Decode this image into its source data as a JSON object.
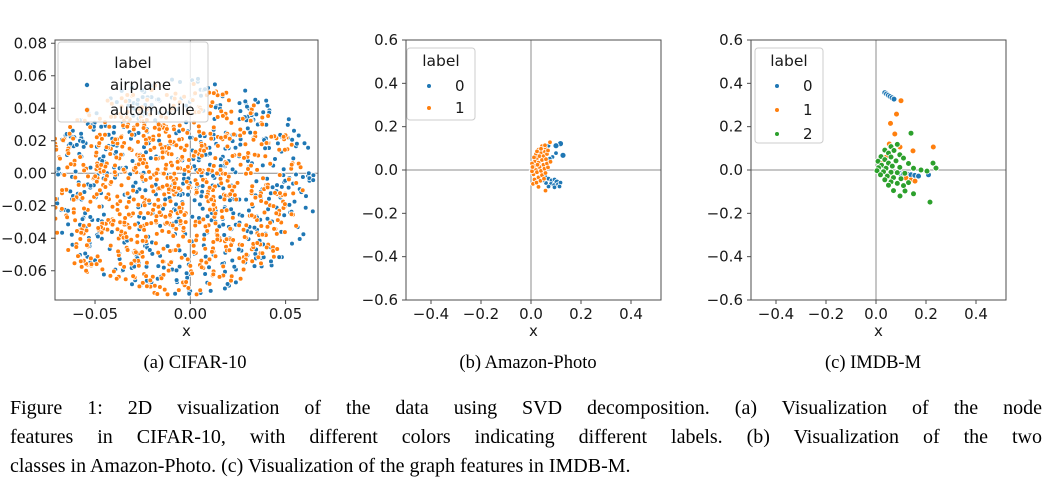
{
  "figure_caption": {
    "lines": [
      "Figure 1: 2D visualization of the data using SVD decomposition. (a) Visualization of the node",
      "features in CIFAR-10, with different colors indicating different labels. (b) Visualization of the two",
      "classes in Amazon-Photo. (c) Visualization of the graph features in IMDB-M."
    ],
    "full_text": "Figure 1: 2D visualization of the data using SVD decomposition. (a) Visualization of the node features in CIFAR-10, with different colors indicating different labels. (b) Visualization of the two classes in Amazon-Photo. (c) Visualization of the graph features in IMDB-M."
  },
  "colors": {
    "blue": "#1f77b4",
    "orange": "#ff7f0e",
    "green": "#2ca02c",
    "crosshair_gray": "#8c8c8c",
    "axes_gray": "#4d4d4d",
    "legend_fill": "rgba(255,255,255,0.8)",
    "legend_border": "#cccccc"
  },
  "chart_data": [
    {
      "type": "scatter",
      "panel": "a",
      "subcaption": "(a) CIFAR-10",
      "xlabel": "x",
      "xlim": [
        -0.071,
        0.067
      ],
      "ylim": [
        -0.078,
        0.082
      ],
      "x_ticks": [
        -0.05,
        0,
        0.05
      ],
      "x_tick_labels": [
        "−0.05",
        "0.00",
        "0.05"
      ],
      "y_ticks": [
        0.08,
        0.06,
        0.04,
        0.02,
        0,
        -0.02,
        -0.04,
        -0.06
      ],
      "y_tick_labels": [
        "0.08",
        "0.06",
        "0.04",
        "0.02",
        "0.00",
        "−0.02",
        "−0.04",
        "−0.06"
      ],
      "grid": false,
      "crosshair": true,
      "legend": {
        "title": "label",
        "position": "upper-left",
        "items": [
          "airplane",
          "automobile"
        ]
      },
      "series": [
        {
          "name": "airplane",
          "color": "#1f77b4",
          "marker_radius": 2.4,
          "generated_cluster": {
            "note": "dense ~1400-point circular cloud; individual points not resolvable, reproduced procedurally",
            "seed": 11,
            "count": 600,
            "center": [
              -0.004,
              -0.008
            ],
            "radius": [
              0.071,
              0.067
            ],
            "density_exp": 0.5
          }
        },
        {
          "name": "automobile",
          "color": "#ff7f0e",
          "marker_radius": 2.4,
          "generated_cluster": {
            "seed": 29,
            "count": 820,
            "center": [
              -0.01,
              -0.01
            ],
            "radius": [
              0.07,
              0.066
            ],
            "density_exp": 0.66
          }
        }
      ]
    },
    {
      "type": "scatter",
      "panel": "b",
      "subcaption": "(b) Amazon-Photo",
      "xlabel": "x",
      "xlim": [
        -0.5,
        0.52
      ],
      "ylim": [
        -0.6,
        0.6
      ],
      "x_ticks": [
        -0.4,
        -0.2,
        0,
        0.2,
        0.4
      ],
      "x_tick_labels": [
        "−0.4",
        "−0.2",
        "0.0",
        "0.2",
        "0.4"
      ],
      "y_ticks": [
        0.6,
        0.4,
        0.2,
        0,
        -0.2,
        -0.4,
        -0.6
      ],
      "y_tick_labels": [
        "0.6",
        "0.4",
        "0.2",
        "0.0",
        "−0.2",
        "−0.4",
        "−0.6"
      ],
      "grid": false,
      "crosshair": true,
      "legend": {
        "title": "label",
        "position": "upper-left",
        "items": [
          "0",
          "1"
        ]
      },
      "series": [
        {
          "name": "0",
          "color": "#1f77b4",
          "marker_radius": 2.3,
          "points": [
            [
              0.118,
              0.122,
              3
            ],
            [
              0.1,
              0.112,
              3
            ],
            [
              0.128,
              0.068,
              3
            ],
            [
              0.1,
              0.078
            ],
            [
              0.086,
              0.06
            ],
            [
              0.075,
              0.052
            ],
            [
              0.062,
              0.098
            ],
            [
              0.07,
              0.112
            ],
            [
              0.052,
              0.105
            ],
            [
              0.002,
              -0.002
            ],
            [
              0.058,
              -0.032
            ],
            [
              0.07,
              -0.04
            ],
            [
              0.082,
              -0.048
            ],
            [
              0.094,
              -0.044
            ],
            [
              0.104,
              -0.056,
              3
            ],
            [
              0.08,
              -0.064
            ],
            [
              0.092,
              -0.07
            ],
            [
              0.108,
              -0.066
            ],
            [
              0.118,
              -0.058
            ],
            [
              0.07,
              -0.076
            ],
            [
              0.094,
              -0.08
            ],
            [
              0.114,
              -0.076
            ],
            [
              0.06,
              -0.06
            ],
            [
              0.048,
              -0.048
            ]
          ]
        },
        {
          "name": "1",
          "color": "#ff7f0e",
          "marker_radius": 2.3,
          "points": [
            [
              0.01,
              0.004
            ],
            [
              0.016,
              0.04
            ],
            [
              0.02,
              0.074
            ],
            [
              0.03,
              0.094
            ],
            [
              0.044,
              0.11
            ],
            [
              0.058,
              0.1
            ],
            [
              0.076,
              0.128
            ],
            [
              0.025,
              0.056
            ],
            [
              0.04,
              0.08
            ],
            [
              0.056,
              0.084
            ],
            [
              0.034,
              0.064
            ],
            [
              0.05,
              0.064
            ],
            [
              0.064,
              0.074
            ],
            [
              0.014,
              0.02
            ],
            [
              0.03,
              0.034
            ],
            [
              0.044,
              0.046
            ],
            [
              0.06,
              0.05
            ],
            [
              0.02,
              0.0
            ],
            [
              0.034,
              0.014
            ],
            [
              0.05,
              0.024
            ],
            [
              0.064,
              0.03
            ],
            [
              0.078,
              0.038
            ],
            [
              0.01,
              -0.02
            ],
            [
              0.024,
              -0.01
            ],
            [
              0.04,
              -0.004
            ],
            [
              0.054,
              0.006
            ],
            [
              0.068,
              0.012
            ],
            [
              0.014,
              -0.044
            ],
            [
              0.03,
              -0.034
            ],
            [
              0.044,
              -0.024
            ],
            [
              0.058,
              -0.014
            ],
            [
              0.008,
              -0.064
            ],
            [
              0.022,
              -0.058
            ],
            [
              0.038,
              -0.05
            ],
            [
              0.052,
              -0.04
            ],
            [
              0.03,
              -0.078
            ],
            [
              0.058,
              -0.095
            ],
            [
              0.012,
              0.058
            ],
            [
              0.004,
              0.03
            ],
            [
              0.004,
              -0.006
            ],
            [
              0.068,
              0.09
            ],
            [
              0.04,
              0.098
            ],
            [
              0.024,
              0.086
            ],
            [
              0.056,
              0.114
            ],
            [
              0.006,
              0.014
            ],
            [
              0.026,
              0.024
            ]
          ]
        }
      ]
    },
    {
      "type": "scatter",
      "panel": "c",
      "subcaption": "(c) IMDB-M",
      "xlabel": "x",
      "xlim": [
        -0.5,
        0.52
      ],
      "ylim": [
        -0.6,
        0.6
      ],
      "x_ticks": [
        -0.4,
        -0.2,
        0,
        0.2,
        0.4
      ],
      "x_tick_labels": [
        "−0.4",
        "−0.2",
        "0.0",
        "0.2",
        "0.4"
      ],
      "y_ticks": [
        0.6,
        0.4,
        0.2,
        0,
        -0.2,
        -0.4,
        -0.6
      ],
      "y_tick_labels": [
        "0.6",
        "0.4",
        "0.2",
        "0.0",
        "−0.2",
        "−0.4",
        "−0.6"
      ],
      "grid": false,
      "crosshair": true,
      "legend": {
        "title": "label",
        "position": "upper-left",
        "items": [
          "0",
          "1",
          "2"
        ]
      },
      "series": [
        {
          "name": "0",
          "color": "#1f77b4",
          "marker_radius": 2.9,
          "points": [
            [
              0.035,
              0.357
            ],
            [
              0.042,
              0.351
            ],
            [
              0.049,
              0.345
            ],
            [
              0.056,
              0.339
            ],
            [
              0.064,
              0.333
            ],
            [
              0.072,
              0.327
            ],
            [
              0.095,
              -0.015
            ],
            [
              0.11,
              -0.018
            ],
            [
              0.125,
              -0.02
            ],
            [
              0.14,
              -0.022
            ],
            [
              0.155,
              -0.025
            ],
            [
              0.17,
              -0.028
            ],
            [
              0.21,
              -0.022
            ],
            [
              0.016,
              0.002
            ],
            [
              0.03,
              -0.006
            ]
          ]
        },
        {
          "name": "1",
          "color": "#ff7f0e",
          "marker_radius": 2.9,
          "points": [
            [
              0.1,
              0.32
            ],
            [
              0.082,
              0.258
            ],
            [
              0.058,
              0.215
            ],
            [
              0.075,
              0.166
            ],
            [
              0.053,
              0.12
            ],
            [
              0.096,
              0.106
            ],
            [
              0.148,
              0.088
            ],
            [
              0.229,
              0.106
            ],
            [
              0.04,
              0.058
            ],
            [
              0.022,
              0.03
            ],
            [
              0.12,
              -0.037
            ],
            [
              0.14,
              -0.046
            ],
            [
              0.156,
              -0.051
            ],
            [
              0.06,
              -0.03
            ]
          ]
        },
        {
          "name": "2",
          "color": "#2ca02c",
          "marker_radius": 2.9,
          "points": [
            [
              0.14,
              0.17
            ],
            [
              0.085,
              0.118
            ],
            [
              0.06,
              0.108
            ],
            [
              0.035,
              0.092
            ],
            [
              0.072,
              0.09
            ],
            [
              0.05,
              0.078
            ],
            [
              0.095,
              0.07
            ],
            [
              0.02,
              0.062
            ],
            [
              0.06,
              0.06
            ],
            [
              0.11,
              0.055
            ],
            [
              0.035,
              0.048
            ],
            [
              0.08,
              0.042
            ],
            [
              0.008,
              0.04
            ],
            [
              0.05,
              0.032
            ],
            [
              0.13,
              0.03
            ],
            [
              0.228,
              0.032
            ],
            [
              0.022,
              0.022
            ],
            [
              0.065,
              0.018
            ],
            [
              0.095,
              0.012
            ],
            [
              0.01,
              0.01
            ],
            [
              0.04,
              0.008
            ],
            [
              0.15,
              0.008
            ],
            [
              0.24,
              0.009
            ],
            [
              0.004,
              -0.003
            ],
            [
              0.03,
              -0.008
            ],
            [
              0.06,
              -0.01
            ],
            [
              0.085,
              -0.012
            ],
            [
              0.115,
              -0.015
            ],
            [
              0.018,
              -0.022
            ],
            [
              0.045,
              -0.028
            ],
            [
              0.07,
              -0.035
            ],
            [
              0.1,
              -0.04
            ],
            [
              0.035,
              -0.045
            ],
            [
              0.06,
              -0.055
            ],
            [
              0.13,
              -0.058
            ],
            [
              0.085,
              -0.062
            ],
            [
              0.05,
              -0.07
            ],
            [
              0.11,
              -0.072
            ],
            [
              0.07,
              -0.095
            ],
            [
              0.116,
              -0.097
            ],
            [
              0.15,
              -0.11
            ],
            [
              0.096,
              -0.12
            ],
            [
              0.216,
              -0.148
            ],
            [
              0.204,
              -0.005
            ],
            [
              0.18,
              0.0
            ]
          ]
        }
      ]
    }
  ]
}
